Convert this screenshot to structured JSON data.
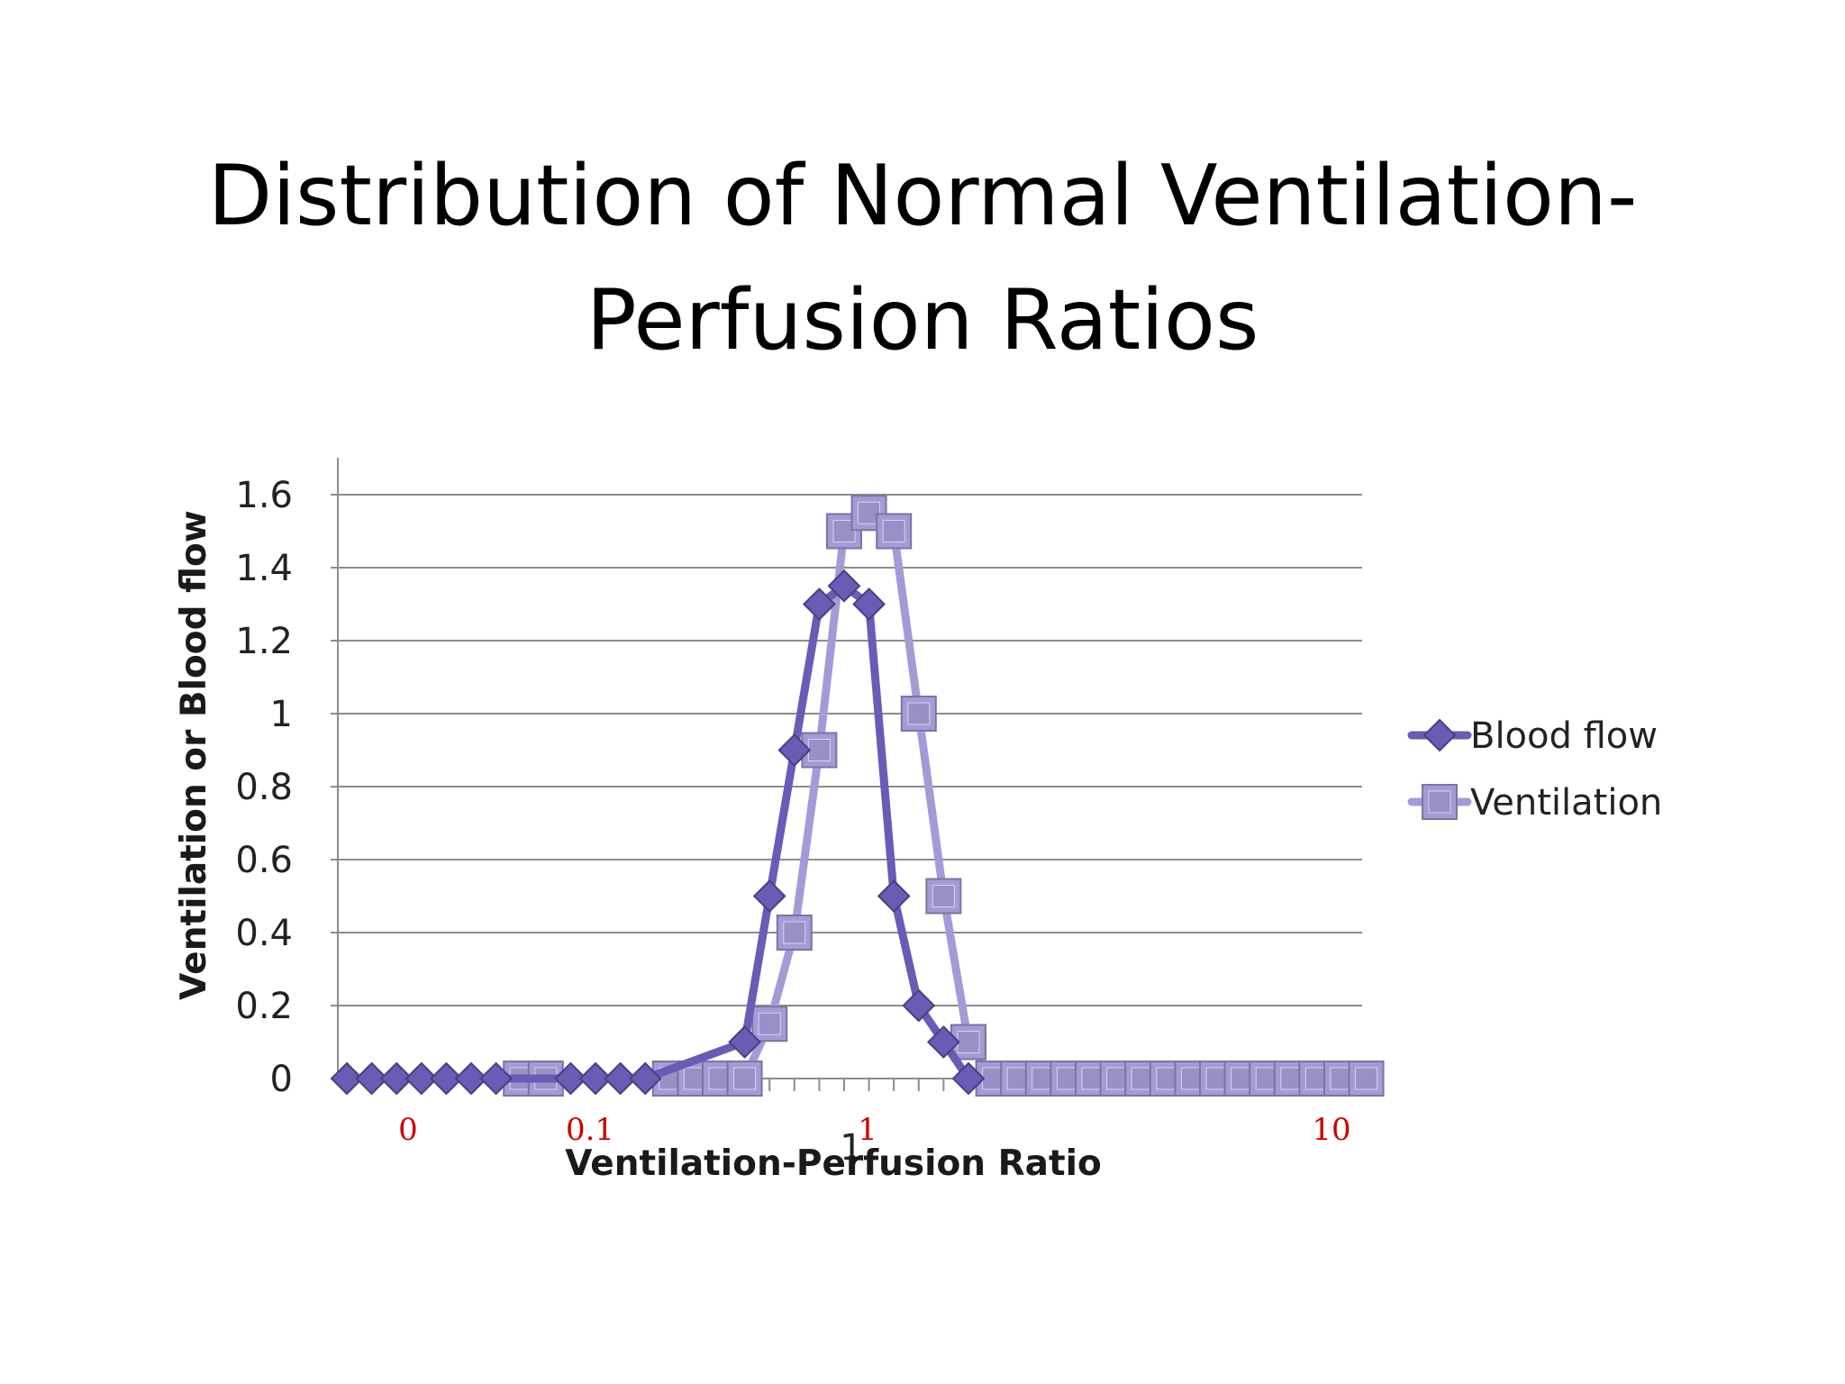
{
  "slide": {
    "title_line1": "Distribution of Normal Ventilation-",
    "title_line2": "Perfusion Ratios"
  },
  "overlay_labels": {
    "color": "#cc0000",
    "items": [
      "0",
      "0.1",
      "1",
      "10"
    ]
  },
  "chart_data": {
    "type": "line",
    "xlabel": "Ventilation-Perfusion Ratio",
    "ylabel": "Ventilation or Blood flow",
    "ylim": [
      0,
      1.6
    ],
    "yticks": [
      "0",
      "0.2",
      "0.4",
      "0.6",
      "0.8",
      "1",
      "1.2",
      "1.4",
      "1.6"
    ],
    "x_tick_label": "1",
    "grid": true,
    "legend_position": "right",
    "series": [
      {
        "name": "Blood flow",
        "marker": "diamond",
        "color": "#6a5bb5",
        "points": [
          [
            1,
            0
          ],
          [
            2,
            0
          ],
          [
            3,
            0
          ],
          [
            4,
            0
          ],
          [
            5,
            0
          ],
          [
            6,
            0
          ],
          [
            7,
            0
          ],
          [
            10,
            0
          ],
          [
            11,
            0
          ],
          [
            12,
            0
          ],
          [
            13,
            0
          ],
          [
            17,
            0.1
          ],
          [
            18,
            0.5
          ],
          [
            19,
            0.9
          ],
          [
            20,
            1.3
          ],
          [
            21,
            1.35
          ],
          [
            22,
            1.3
          ],
          [
            23,
            0.5
          ],
          [
            24,
            0.2
          ],
          [
            25,
            0.1
          ],
          [
            26,
            0
          ]
        ]
      },
      {
        "name": "Ventilation",
        "marker": "square",
        "color": "#a49bd6",
        "points": [
          [
            8,
            0
          ],
          [
            9,
            0
          ],
          [
            14,
            0
          ],
          [
            15,
            0
          ],
          [
            16,
            0
          ],
          [
            17,
            0
          ],
          [
            18,
            0.15
          ],
          [
            19,
            0.4
          ],
          [
            20,
            0.9
          ],
          [
            21,
            1.5
          ],
          [
            22,
            1.55
          ],
          [
            23,
            1.5
          ],
          [
            24,
            1.0
          ],
          [
            25,
            0.5
          ],
          [
            26,
            0.1
          ],
          [
            27,
            0
          ],
          [
            28,
            0
          ],
          [
            29,
            0
          ],
          [
            30,
            0
          ],
          [
            31,
            0
          ],
          [
            32,
            0
          ],
          [
            33,
            0
          ],
          [
            34,
            0
          ],
          [
            35,
            0
          ],
          [
            36,
            0
          ],
          [
            37,
            0
          ],
          [
            38,
            0
          ],
          [
            39,
            0
          ],
          [
            40,
            0
          ],
          [
            41,
            0
          ],
          [
            42,
            0
          ]
        ]
      }
    ]
  }
}
